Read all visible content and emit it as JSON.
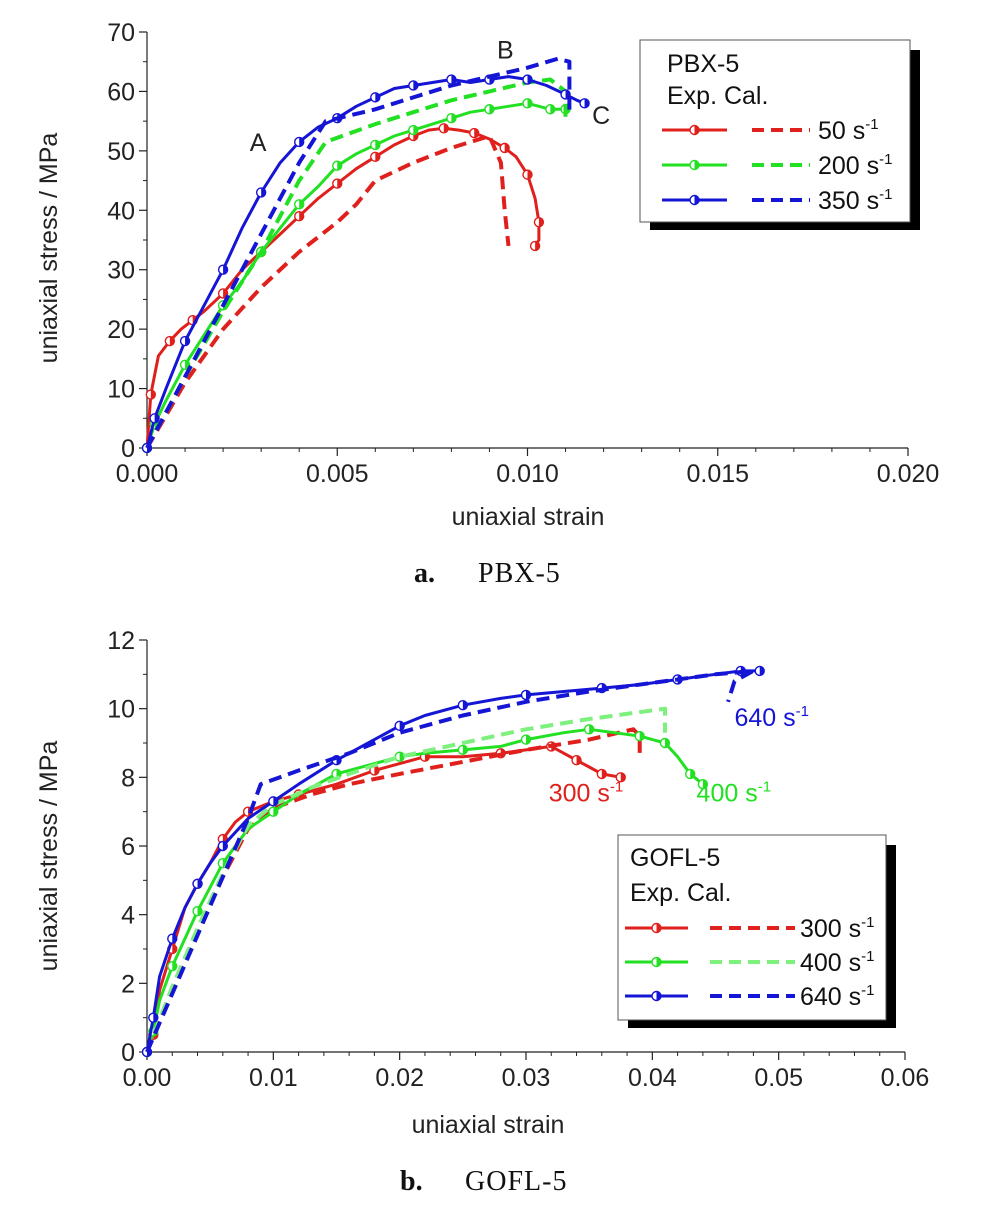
{
  "chart_data": [
    {
      "type": "line",
      "id": "a",
      "caption_label": "a.",
      "caption_name": "PBX-5",
      "xlabel": "uniaxial strain",
      "ylabel": "uniaxial stress / MPa",
      "xlim": [
        0,
        0.02
      ],
      "ylim": [
        0,
        70
      ],
      "xticks": [
        "0.000",
        "0.005",
        "0.010",
        "0.015",
        "0.020"
      ],
      "yticks": [
        "0",
        "10",
        "20",
        "30",
        "40",
        "50",
        "60",
        "70"
      ],
      "legend": {
        "title": "PBX-5",
        "subtitle": "Exp. Cal.",
        "entries": [
          {
            "rate": "50 s",
            "exp": "-1",
            "color": "#e0201c"
          },
          {
            "rate": "200 s",
            "exp": "-1",
            "color": "#22e022"
          },
          {
            "rate": "350 s",
            "exp": "-1",
            "color": "#1515d6"
          }
        ]
      },
      "annotations": [
        {
          "text": "A",
          "x": 0.0027,
          "y": 50,
          "color": "#222222"
        },
        {
          "text": "B",
          "x": 0.0092,
          "y": 65.5,
          "color": "#222222"
        },
        {
          "text": "C",
          "x": 0.0117,
          "y": 54.5,
          "color": "#222222"
        }
      ],
      "series": [
        {
          "legend_index": 0,
          "kind": "exp",
          "color": "#e0201c",
          "x": [
            0,
            0.0001,
            0.0003,
            0.0006,
            0.0009,
            0.0012,
            0.0015,
            0.002,
            0.0025,
            0.003,
            0.0035,
            0.004,
            0.0045,
            0.005,
            0.0055,
            0.006,
            0.0065,
            0.007,
            0.0074,
            0.0078,
            0.0082,
            0.0086,
            0.009,
            0.0094,
            0.0097,
            0.01,
            0.0102,
            0.0103,
            0.0103,
            0.0102
          ],
          "y": [
            0,
            9,
            15.5,
            18,
            20,
            21.5,
            23,
            26,
            30,
            33,
            36,
            39,
            42,
            44.5,
            47,
            49,
            51,
            52.5,
            53.5,
            53.8,
            53.5,
            53,
            52,
            50.5,
            49,
            46,
            42,
            38,
            35,
            34
          ]
        },
        {
          "legend_index": 0,
          "kind": "cal",
          "color": "#e0201c",
          "x": [
            0,
            0.001,
            0.002,
            0.003,
            0.004,
            0.005,
            0.0055,
            0.006,
            0.007,
            0.008,
            0.009,
            0.0093,
            0.0094,
            0.0095
          ],
          "y": [
            0,
            11,
            20,
            27,
            33,
            38,
            41,
            45,
            48,
            50.5,
            52.5,
            48,
            40,
            34
          ]
        },
        {
          "legend_index": 1,
          "kind": "exp",
          "color": "#22e022",
          "x": [
            0,
            0.0002,
            0.0005,
            0.001,
            0.0015,
            0.002,
            0.0025,
            0.003,
            0.0035,
            0.004,
            0.0045,
            0.005,
            0.0055,
            0.006,
            0.0065,
            0.007,
            0.0075,
            0.008,
            0.0085,
            0.009,
            0.0095,
            0.01,
            0.0103,
            0.0106,
            0.011
          ],
          "y": [
            0,
            4,
            8,
            14,
            19,
            24,
            28,
            33,
            37,
            41,
            44,
            47.5,
            49.5,
            51,
            52.5,
            53.5,
            54.5,
            55.5,
            56.5,
            57,
            57.5,
            58,
            57.5,
            57,
            57
          ]
        },
        {
          "legend_index": 1,
          "kind": "cal",
          "color": "#22e022",
          "x": [
            0,
            0.001,
            0.002,
            0.003,
            0.004,
            0.0047,
            0.006,
            0.007,
            0.008,
            0.009,
            0.01,
            0.0106,
            0.011,
            0.011
          ],
          "y": [
            0,
            12,
            23,
            33,
            45,
            51.5,
            54.5,
            56.5,
            58.5,
            60,
            61.5,
            62,
            60,
            55
          ]
        },
        {
          "legend_index": 2,
          "kind": "exp",
          "color": "#1515d6",
          "x": [
            0,
            0.0002,
            0.0005,
            0.001,
            0.0015,
            0.002,
            0.0025,
            0.003,
            0.0035,
            0.004,
            0.0045,
            0.005,
            0.0055,
            0.006,
            0.0065,
            0.007,
            0.0075,
            0.008,
            0.0085,
            0.009,
            0.0095,
            0.01,
            0.0105,
            0.011,
            0.0113,
            0.0115
          ],
          "y": [
            0,
            5,
            10,
            18,
            24,
            30,
            37,
            43,
            48,
            51.5,
            54,
            55.5,
            57.5,
            59,
            60.5,
            61,
            61.5,
            62,
            61.5,
            62,
            62.5,
            62,
            61,
            59.5,
            58.5,
            58
          ]
        },
        {
          "legend_index": 2,
          "kind": "cal",
          "color": "#1515d6",
          "x": [
            0,
            0.001,
            0.002,
            0.003,
            0.004,
            0.0047,
            0.006,
            0.007,
            0.008,
            0.009,
            0.01,
            0.0108,
            0.0111,
            0.0111
          ],
          "y": [
            0,
            12,
            24,
            36,
            48,
            55,
            57,
            59,
            61,
            62.5,
            64,
            65.5,
            65,
            56
          ]
        }
      ]
    },
    {
      "type": "line",
      "id": "b",
      "caption_label": "b.",
      "caption_name": "GOFL-5",
      "xlabel": "uniaxial strain",
      "ylabel": "uniaxial stress / MPa",
      "xlim": [
        0,
        0.06
      ],
      "ylim": [
        0,
        12
      ],
      "xticks": [
        "0.00",
        "0.01",
        "0.02",
        "0.03",
        "0.04",
        "0.05",
        "0.06"
      ],
      "yticks": [
        "0",
        "2",
        "4",
        "6",
        "8",
        "10",
        "12"
      ],
      "legend": {
        "title": "GOFL-5",
        "subtitle": "Exp. Cal.",
        "entries": [
          {
            "rate": "300 s",
            "exp": "-1",
            "color": "#e0201c"
          },
          {
            "rate": "400 s",
            "exp": "-1",
            "color": "#22e022"
          },
          {
            "rate": "640 s",
            "exp": "-1",
            "color": "#1515d6"
          }
        ]
      },
      "annotations": [
        {
          "text": "300 s",
          "exp": "-1",
          "x": 0.0318,
          "y": 7.3,
          "color": "#e0201c"
        },
        {
          "text": "400 s",
          "exp": "-1",
          "x": 0.0435,
          "y": 7.3,
          "color": "#22e022"
        },
        {
          "text": "640 s",
          "exp": "-1",
          "x": 0.0465,
          "y": 9.5,
          "color": "#1515d6"
        }
      ],
      "series": [
        {
          "legend_index": 0,
          "kind": "exp",
          "color": "#e0201c",
          "x": [
            0,
            0.0005,
            0.001,
            0.002,
            0.003,
            0.004,
            0.005,
            0.006,
            0.007,
            0.008,
            0.01,
            0.012,
            0.015,
            0.018,
            0.02,
            0.022,
            0.025,
            0.028,
            0.03,
            0.032,
            0.033,
            0.034,
            0.035,
            0.036,
            0.0375
          ],
          "y": [
            0,
            0.5,
            1.8,
            3,
            4.2,
            4.9,
            5.5,
            6.2,
            6.7,
            7,
            7.3,
            7.5,
            7.8,
            8.2,
            8.4,
            8.6,
            8.6,
            8.7,
            8.8,
            8.9,
            8.7,
            8.5,
            8.3,
            8.1,
            8
          ]
        },
        {
          "legend_index": 0,
          "kind": "cal",
          "color": "#e0201c",
          "x": [
            0,
            0.002,
            0.004,
            0.006,
            0.008,
            0.01,
            0.013,
            0.016,
            0.02,
            0.025,
            0.03,
            0.035,
            0.0385,
            0.039,
            0.039
          ],
          "y": [
            0,
            1.8,
            3.5,
            5.1,
            6.5,
            7.1,
            7.5,
            7.8,
            8.1,
            8.45,
            8.8,
            9.1,
            9.4,
            9.2,
            8.7
          ]
        },
        {
          "legend_index": 1,
          "kind": "exp",
          "color": "#22e022",
          "x": [
            0,
            0.0005,
            0.001,
            0.002,
            0.003,
            0.004,
            0.005,
            0.006,
            0.008,
            0.01,
            0.012,
            0.015,
            0.018,
            0.02,
            0.022,
            0.025,
            0.028,
            0.03,
            0.033,
            0.035,
            0.037,
            0.039,
            0.04,
            0.041,
            0.042,
            0.043,
            0.044
          ],
          "y": [
            0,
            0.6,
            1.5,
            2.5,
            3.3,
            4.1,
            4.8,
            5.5,
            6.5,
            7,
            7.5,
            8.1,
            8.4,
            8.6,
            8.7,
            8.8,
            8.9,
            9.1,
            9.3,
            9.4,
            9.3,
            9.2,
            9.1,
            9,
            8.6,
            8.1,
            7.8
          ]
        },
        {
          "legend_index": 1,
          "kind": "cal",
          "color": "#7ef07e",
          "x": [
            0,
            0.002,
            0.004,
            0.006,
            0.008,
            0.01,
            0.013,
            0.016,
            0.02,
            0.025,
            0.03,
            0.035,
            0.041,
            0.041,
            0.041
          ],
          "y": [
            0,
            1.9,
            3.6,
            5.2,
            6.6,
            7.2,
            7.7,
            8.1,
            8.6,
            9,
            9.4,
            9.7,
            10,
            9.8,
            9.3
          ]
        },
        {
          "legend_index": 2,
          "kind": "exp",
          "color": "#1515d6",
          "x": [
            0,
            0.0005,
            0.001,
            0.002,
            0.003,
            0.004,
            0.005,
            0.006,
            0.008,
            0.01,
            0.012,
            0.015,
            0.018,
            0.02,
            0.022,
            0.025,
            0.028,
            0.03,
            0.033,
            0.036,
            0.039,
            0.042,
            0.045,
            0.047,
            0.0485
          ],
          "y": [
            0,
            1,
            2.2,
            3.3,
            4.2,
            4.9,
            5.5,
            6,
            6.8,
            7.3,
            7.8,
            8.5,
            9.1,
            9.5,
            9.8,
            10.1,
            10.3,
            10.4,
            10.5,
            10.6,
            10.7,
            10.85,
            11,
            11.1,
            11.1
          ]
        },
        {
          "legend_index": 2,
          "kind": "cal",
          "color": "#1515d6",
          "x": [
            0,
            0.002,
            0.004,
            0.006,
            0.008,
            0.009,
            0.012,
            0.016,
            0.02,
            0.025,
            0.03,
            0.035,
            0.04,
            0.045,
            0.048,
            0.0465,
            0.046
          ],
          "y": [
            0,
            1.7,
            3.4,
            5.1,
            6.8,
            7.8,
            8.2,
            8.7,
            9.3,
            9.8,
            10.2,
            10.5,
            10.75,
            11,
            11.1,
            10.8,
            10.2
          ]
        }
      ]
    }
  ]
}
